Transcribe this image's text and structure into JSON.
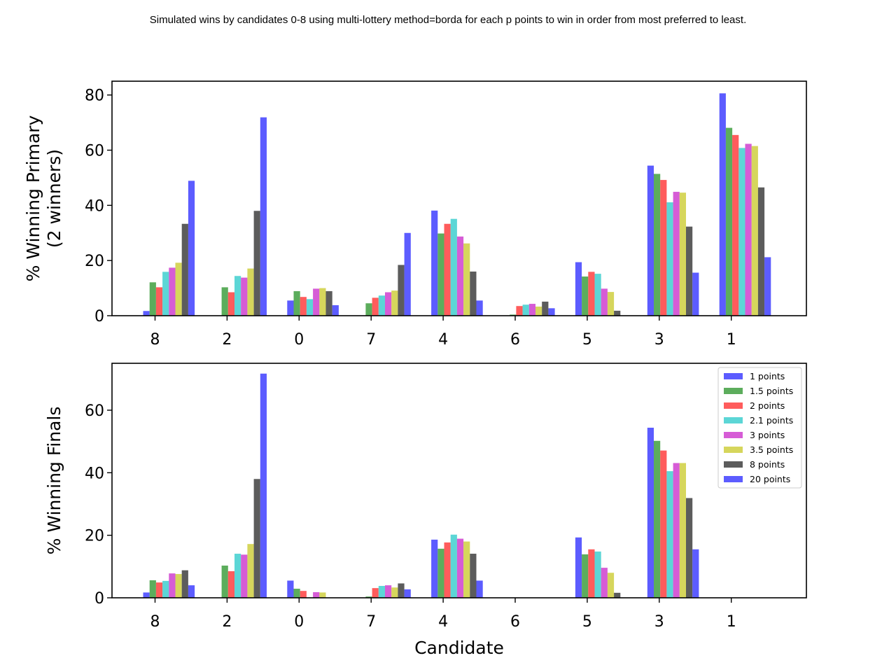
{
  "chart_data": {
    "title": "Simulated wins by candidates 0-8 using multi-lottery method=borda for each p points to win in order from most preferred to least.",
    "type": "bar",
    "series": [
      {
        "name": "1 points",
        "color": "#3333ff"
      },
      {
        "name": "1.5 points",
        "color": "#339933"
      },
      {
        "name": "2 points",
        "color": "#ff3333"
      },
      {
        "name": "2.1 points",
        "color": "#33cccc"
      },
      {
        "name": "3 points",
        "color": "#cc33cc"
      },
      {
        "name": "3.5 points",
        "color": "#cccc33"
      },
      {
        "name": "8 points",
        "color": "#333333"
      },
      {
        "name": "20 points",
        "color": "#3333ff"
      }
    ],
    "subplots": [
      {
        "ylabel": [
          "% Winning Primary",
          "(2 winners)"
        ],
        "ylim": [
          0,
          85
        ],
        "yticks": [
          0,
          20,
          40,
          60,
          80
        ],
        "categories": [
          "8",
          "2",
          "0",
          "7",
          "4",
          "6",
          "5",
          "3",
          "1"
        ],
        "values": [
          [
            1.7,
            12.1,
            10.3,
            15.9,
            17.4,
            19.2,
            33.3,
            48.9
          ],
          [
            0,
            10.3,
            8.5,
            14.4,
            13.8,
            17.1,
            38.0,
            71.9
          ],
          [
            5.5,
            8.9,
            6.8,
            6.0,
            9.8,
            10.0,
            8.9,
            3.8
          ],
          [
            0,
            4.5,
            6.5,
            7.3,
            8.5,
            9.1,
            18.4,
            30.0
          ],
          [
            38.1,
            29.8,
            33.3,
            35.1,
            28.7,
            26.2,
            16.0,
            5.5
          ],
          [
            0,
            0.4,
            3.5,
            4.0,
            4.3,
            3.3,
            5.1,
            2.7
          ],
          [
            19.4,
            14.2,
            15.9,
            15.2,
            9.8,
            8.6,
            1.8,
            0
          ],
          [
            54.4,
            51.4,
            49.2,
            41.1,
            44.9,
            44.6,
            32.3,
            15.6
          ],
          [
            80.6,
            68.1,
            65.5,
            60.8,
            62.3,
            61.5,
            46.5,
            21.2
          ]
        ]
      },
      {
        "ylabel": [
          "% Winning Finals"
        ],
        "xlabel": "Candidate",
        "ylim": [
          0,
          75
        ],
        "yticks": [
          0,
          20,
          40,
          60
        ],
        "legend": "top-right",
        "categories": [
          "8",
          "2",
          "0",
          "7",
          "4",
          "6",
          "5",
          "3",
          "1"
        ],
        "values": [
          [
            1.7,
            5.6,
            4.9,
            5.4,
            7.8,
            7.6,
            8.8,
            4.0
          ],
          [
            0,
            10.3,
            8.5,
            14.1,
            13.8,
            17.2,
            38.0,
            71.7
          ],
          [
            5.5,
            2.9,
            2.2,
            0,
            1.8,
            1.7,
            0,
            0
          ],
          [
            0,
            0.4,
            3.1,
            3.8,
            4.0,
            3.3,
            4.6,
            2.7
          ],
          [
            18.6,
            15.7,
            17.7,
            20.2,
            18.9,
            18.0,
            14.1,
            5.5
          ],
          [
            0,
            0,
            0,
            0,
            0,
            0,
            0,
            0
          ],
          [
            19.3,
            13.9,
            15.5,
            14.8,
            9.6,
            8.0,
            1.6,
            0
          ],
          [
            54.4,
            50.2,
            47.1,
            40.5,
            43.1,
            43.1,
            31.9,
            15.5
          ],
          [
            0,
            0,
            0,
            0,
            0,
            0,
            0,
            0
          ]
        ]
      }
    ]
  }
}
